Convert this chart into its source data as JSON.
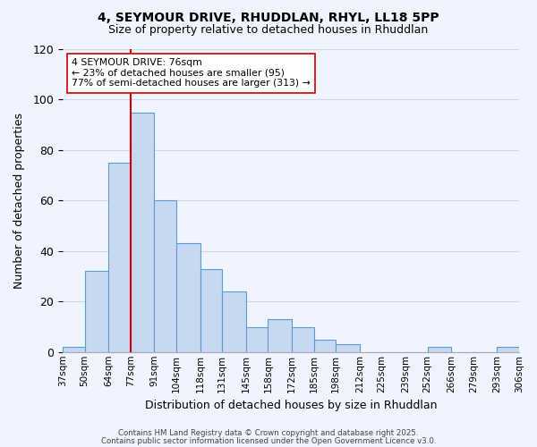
{
  "title1": "4, SEYMOUR DRIVE, RHUDDLAN, RHYL, LL18 5PP",
  "title2": "Size of property relative to detached houses in Rhuddlan",
  "xlabel": "Distribution of detached houses by size in Rhuddlan",
  "ylabel": "Number of detached properties",
  "bin_labels": [
    "37sqm",
    "50sqm",
    "64sqm",
    "77sqm",
    "91sqm",
    "104sqm",
    "118sqm",
    "131sqm",
    "145sqm",
    "158sqm",
    "172sqm",
    "185sqm",
    "198sqm",
    "212sqm",
    "225sqm",
    "239sqm",
    "252sqm",
    "266sqm",
    "279sqm",
    "293sqm",
    "306sqm"
  ],
  "bin_edges": [
    37,
    50,
    64,
    77,
    91,
    104,
    118,
    131,
    145,
    158,
    172,
    185,
    198,
    212,
    225,
    239,
    252,
    266,
    279,
    293,
    306
  ],
  "bar_heights": [
    2,
    32,
    75,
    95,
    60,
    43,
    33,
    24,
    10,
    13,
    10,
    5,
    3,
    0,
    0,
    0,
    2,
    0,
    0,
    2
  ],
  "bar_facecolor": "#c8d8f0",
  "bar_edgecolor": "#5b9bd5",
  "ylim": [
    0,
    120
  ],
  "yticks": [
    0,
    20,
    40,
    60,
    80,
    100,
    120
  ],
  "property_line_x": 77,
  "property_line_color": "#cc0000",
  "annotation_line1": "4 SEYMOUR DRIVE: 76sqm",
  "annotation_line2": "← 23% of detached houses are smaller (95)",
  "annotation_line3": "77% of semi-detached houses are larger (313) →",
  "footer1": "Contains HM Land Registry data © Crown copyright and database right 2025.",
  "footer2": "Contains public sector information licensed under the Open Government Licence v3.0.",
  "background_color": "#f0f4ff",
  "grid_color": "#d0d8e8"
}
